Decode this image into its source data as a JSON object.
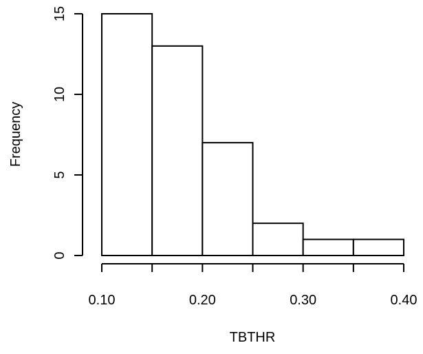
{
  "chart_data": {
    "type": "bar",
    "title": "",
    "xlabel": "TBTHR",
    "ylabel": "Frequency",
    "bins": [
      {
        "start": 0.1,
        "end": 0.15,
        "count": 15
      },
      {
        "start": 0.15,
        "end": 0.2,
        "count": 13
      },
      {
        "start": 0.2,
        "end": 0.25,
        "count": 7
      },
      {
        "start": 0.25,
        "end": 0.3,
        "count": 2
      },
      {
        "start": 0.3,
        "end": 0.35,
        "count": 1
      },
      {
        "start": 0.35,
        "end": 0.4,
        "count": 1
      }
    ],
    "xlim": [
      0.1,
      0.4
    ],
    "ylim": [
      0,
      15
    ],
    "x_ticks": [
      0.1,
      0.15,
      0.2,
      0.25,
      0.3,
      0.35,
      0.4
    ],
    "x_tick_labels": [
      {
        "value": 0.1,
        "label": "0.10"
      },
      {
        "value": 0.2,
        "label": "0.20"
      },
      {
        "value": 0.3,
        "label": "0.30"
      },
      {
        "value": 0.4,
        "label": "0.40"
      }
    ],
    "y_ticks": [
      {
        "value": 0,
        "label": "0"
      },
      {
        "value": 5,
        "label": "5"
      },
      {
        "value": 10,
        "label": "10"
      },
      {
        "value": 15,
        "label": "15"
      }
    ],
    "grid": false,
    "legend": "none",
    "bar_fill": "#ffffff",
    "bar_stroke": "#000000"
  }
}
